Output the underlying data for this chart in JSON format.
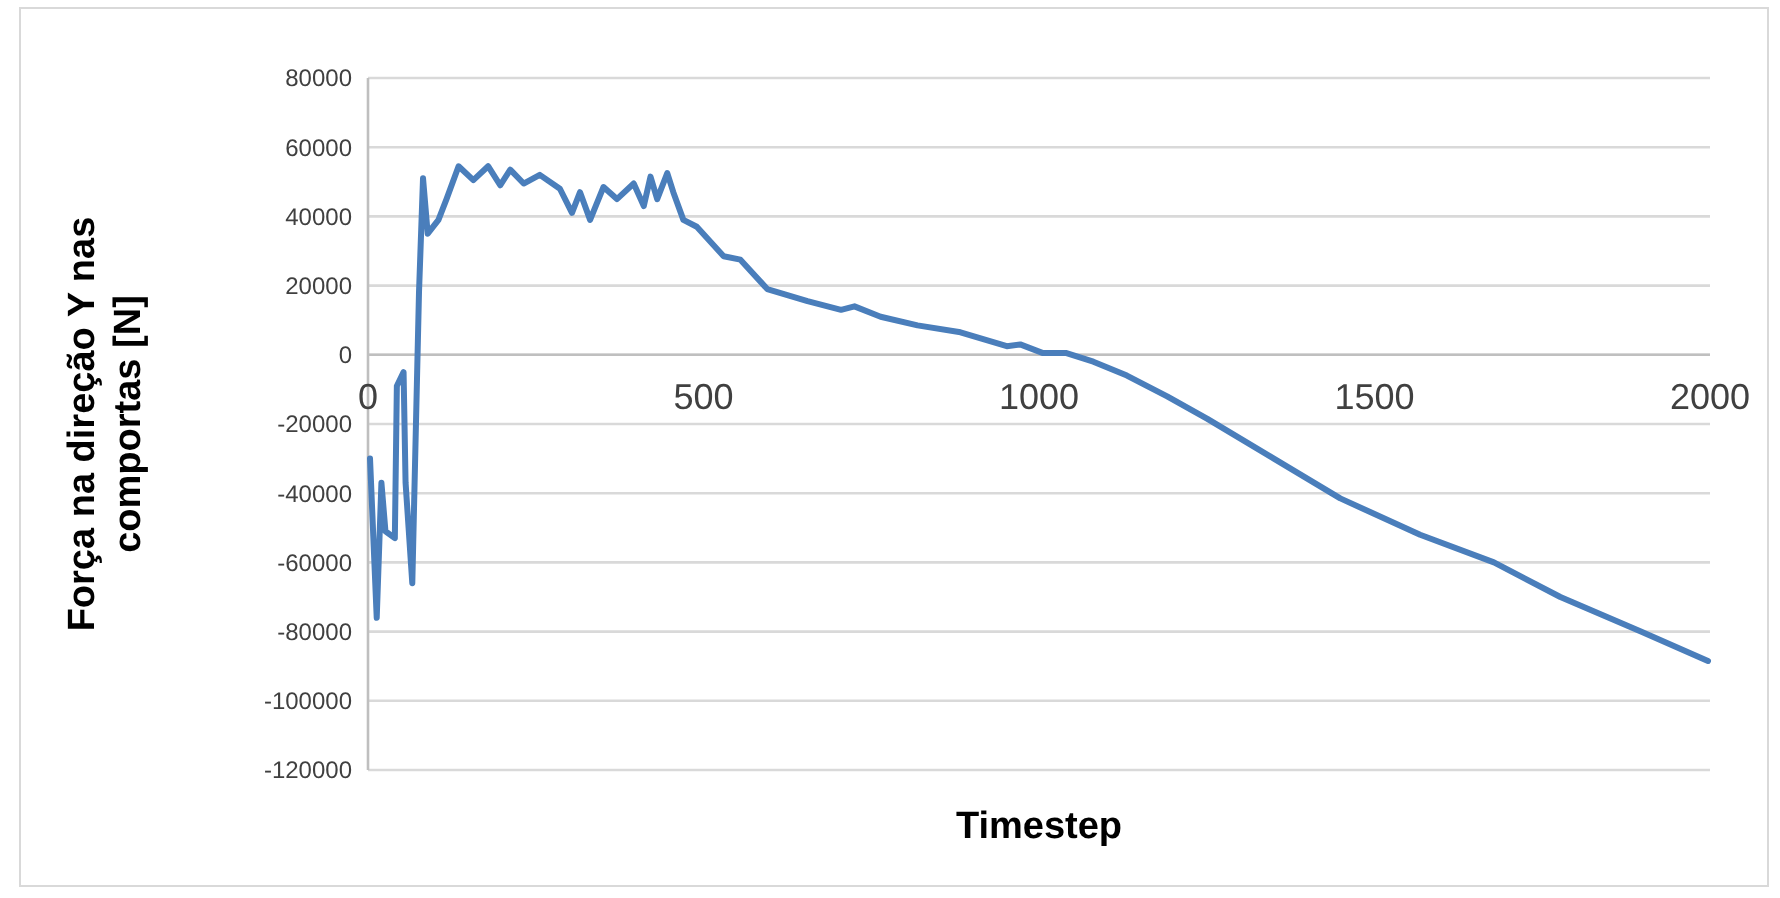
{
  "chart_data": {
    "type": "line",
    "xlabel": "Timestep",
    "ylabel": "Força na direção Y nas comportas [N]",
    "xlim": [
      0,
      2000
    ],
    "xticks": [
      0,
      500,
      1000,
      1500,
      2000
    ],
    "ylim": [
      -120000,
      80000
    ],
    "yticks": [
      -120000,
      -100000,
      -80000,
      -60000,
      -40000,
      -20000,
      0,
      20000,
      40000,
      60000,
      80000
    ],
    "grid": "y",
    "marker": "none",
    "line_style": "solid",
    "series": [
      {
        "color": "#4a7ebb",
        "x": [
          3,
          13,
          20,
          26,
          40,
          43,
          53,
          56,
          66,
          76,
          82,
          89,
          105,
          117,
          135,
          157,
          179,
          197,
          212,
          232,
          256,
          286,
          304,
          316,
          331,
          351,
          371,
          396,
          411,
          421,
          431,
          446,
          455,
          470,
          490,
          530,
          555,
          595,
          655,
          705,
          725,
          764,
          819,
          883,
          952,
          972,
          1006,
          1041,
          1081,
          1131,
          1191,
          1251,
          1350,
          1449,
          1568,
          1678,
          1777,
          1897,
          1997
        ],
        "values": [
          -30000,
          -76000,
          -37000,
          -51000,
          -53000,
          -9000,
          -5000,
          -37000,
          -66000,
          18000,
          51000,
          35000,
          39000,
          45000,
          54500,
          50500,
          54500,
          49000,
          53500,
          49500,
          52000,
          48000,
          41000,
          47000,
          39000,
          48500,
          45000,
          49500,
          43000,
          51500,
          45000,
          52500,
          47000,
          39000,
          37000,
          28500,
          27500,
          19000,
          15500,
          13000,
          14000,
          11000,
          8500,
          6500,
          2500,
          3000,
          500,
          500,
          -2000,
          -6000,
          -12000,
          -18500,
          -30000,
          -41500,
          -52000,
          -60000,
          -70000,
          -80000,
          -88500
        ]
      }
    ]
  }
}
